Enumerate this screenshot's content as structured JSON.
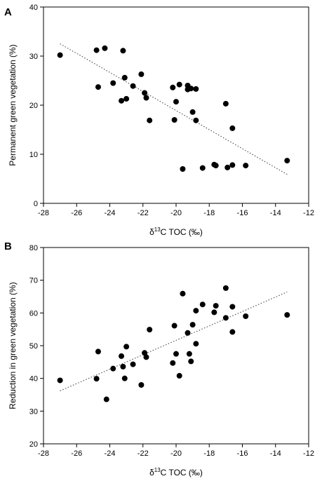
{
  "chart_data": [
    {
      "type": "scatter",
      "panel_label": "A",
      "xlabel_prefix": "δ",
      "xlabel_superscript": "13",
      "xlabel_suffix": "C TOC (‰)",
      "ylabel": "Permanent green vegetation (%)",
      "xlim": [
        -28,
        -12
      ],
      "ylim": [
        0,
        40
      ],
      "xticks": [
        -28,
        -26,
        -24,
        -22,
        -20,
        -18,
        -16,
        -14,
        -12
      ],
      "yticks": [
        0,
        10,
        20,
        30,
        40
      ],
      "grid": false,
      "points": [
        {
          "x": -27.0,
          "y": 30.2
        },
        {
          "x": -24.8,
          "y": 31.2
        },
        {
          "x": -24.7,
          "y": 23.7
        },
        {
          "x": -24.3,
          "y": 31.6
        },
        {
          "x": -23.8,
          "y": 24.5
        },
        {
          "x": -23.2,
          "y": 31.1
        },
        {
          "x": -23.3,
          "y": 20.9
        },
        {
          "x": -23.1,
          "y": 25.6
        },
        {
          "x": -23.0,
          "y": 21.3
        },
        {
          "x": -22.6,
          "y": 23.9
        },
        {
          "x": -22.1,
          "y": 26.3
        },
        {
          "x": -21.9,
          "y": 22.5
        },
        {
          "x": -21.8,
          "y": 21.5
        },
        {
          "x": -21.6,
          "y": 16.9
        },
        {
          "x": -20.2,
          "y": 23.6
        },
        {
          "x": -20.1,
          "y": 17.0
        },
        {
          "x": -20.0,
          "y": 20.7
        },
        {
          "x": -19.8,
          "y": 24.2
        },
        {
          "x": -19.6,
          "y": 7.0
        },
        {
          "x": -19.3,
          "y": 23.2
        },
        {
          "x": -19.3,
          "y": 24.0
        },
        {
          "x": -19.1,
          "y": 23.4
        },
        {
          "x": -19.0,
          "y": 18.6
        },
        {
          "x": -18.8,
          "y": 23.3
        },
        {
          "x": -18.8,
          "y": 16.9
        },
        {
          "x": -18.4,
          "y": 7.2
        },
        {
          "x": -17.7,
          "y": 7.9
        },
        {
          "x": -17.6,
          "y": 7.7
        },
        {
          "x": -17.0,
          "y": 20.3
        },
        {
          "x": -16.9,
          "y": 7.3
        },
        {
          "x": -16.6,
          "y": 15.3
        },
        {
          "x": -16.6,
          "y": 7.8
        },
        {
          "x": -15.8,
          "y": 7.7
        },
        {
          "x": -13.3,
          "y": 8.7
        }
      ],
      "trendline": {
        "x": [
          -27.0,
          -13.3
        ],
        "y": [
          32.5,
          5.9
        ],
        "style": "dotted"
      }
    },
    {
      "type": "scatter",
      "panel_label": "B",
      "xlabel_prefix": "δ",
      "xlabel_superscript": "13",
      "xlabel_suffix": "C TOC (‰)",
      "ylabel": "Reduction in green vegetation (%)",
      "xlim": [
        -28,
        -12
      ],
      "ylim": [
        20,
        80
      ],
      "xticks": [
        -28,
        -26,
        -24,
        -22,
        -20,
        -18,
        -16,
        -14,
        -12
      ],
      "yticks": [
        20,
        30,
        40,
        50,
        60,
        70,
        80
      ],
      "grid": false,
      "points": [
        {
          "x": -27.0,
          "y": 39.4
        },
        {
          "x": -24.8,
          "y": 39.9
        },
        {
          "x": -24.7,
          "y": 48.2
        },
        {
          "x": -24.2,
          "y": 33.6
        },
        {
          "x": -23.8,
          "y": 43.0
        },
        {
          "x": -23.3,
          "y": 46.8
        },
        {
          "x": -23.2,
          "y": 43.6
        },
        {
          "x": -23.1,
          "y": 40.0
        },
        {
          "x": -23.0,
          "y": 49.7
        },
        {
          "x": -22.6,
          "y": 44.3
        },
        {
          "x": -22.1,
          "y": 38.0
        },
        {
          "x": -21.9,
          "y": 47.8
        },
        {
          "x": -21.8,
          "y": 46.5
        },
        {
          "x": -21.6,
          "y": 54.9
        },
        {
          "x": -20.2,
          "y": 44.7
        },
        {
          "x": -20.1,
          "y": 56.1
        },
        {
          "x": -20.0,
          "y": 47.5
        },
        {
          "x": -19.8,
          "y": 40.8
        },
        {
          "x": -19.6,
          "y": 65.9
        },
        {
          "x": -19.3,
          "y": 53.9
        },
        {
          "x": -19.2,
          "y": 47.5
        },
        {
          "x": -19.1,
          "y": 45.2
        },
        {
          "x": -19.0,
          "y": 56.4
        },
        {
          "x": -18.8,
          "y": 60.7
        },
        {
          "x": -18.8,
          "y": 50.6
        },
        {
          "x": -18.4,
          "y": 62.6
        },
        {
          "x": -17.7,
          "y": 60.2
        },
        {
          "x": -17.6,
          "y": 62.2
        },
        {
          "x": -17.0,
          "y": 67.6
        },
        {
          "x": -17.0,
          "y": 58.5
        },
        {
          "x": -16.6,
          "y": 61.9
        },
        {
          "x": -16.6,
          "y": 54.2
        },
        {
          "x": -15.8,
          "y": 59.0
        },
        {
          "x": -13.3,
          "y": 59.4
        }
      ],
      "trendline": {
        "x": [
          -27.0,
          -13.3
        ],
        "y": [
          36.2,
          66.4
        ],
        "style": "dotted"
      }
    }
  ]
}
